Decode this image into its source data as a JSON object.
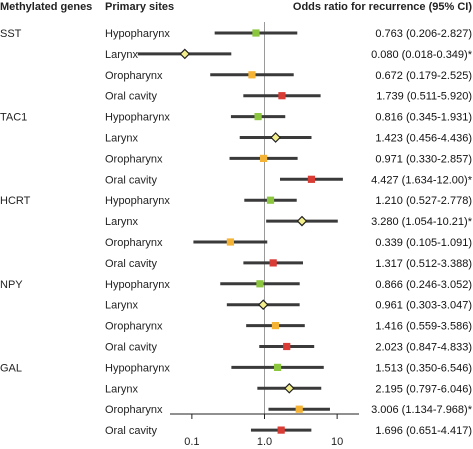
{
  "headers": {
    "genes": "Methylated genes",
    "sites": "Primary sites",
    "or": "Odds ratio for recurrence (95% CI)"
  },
  "colors": {
    "Hypopharynx": "#8cc63f",
    "Larynx": "#f3ef8c",
    "Oropharynx": "#f5b335",
    "Oral cavity": "#d93b35",
    "ci_line": "#3a3a3a"
  },
  "chart_data": {
    "type": "forest",
    "title": "",
    "xlabel": "",
    "ylabel": "",
    "x_scale": "log",
    "xlim": [
      0.05,
      20
    ],
    "xticks": [
      {
        "value": 0.1,
        "label": "0.1"
      },
      {
        "value": 1,
        "label": "1.0"
      },
      {
        "value": 10,
        "label": "10"
      }
    ],
    "reference_line": 1,
    "groups": [
      {
        "gene": "SST",
        "rows": [
          {
            "site": "Hypopharynx",
            "or": 0.763,
            "lo": 0.206,
            "hi": 2.827,
            "label": "0.763 (0.206-2.827)",
            "marker": "square"
          },
          {
            "site": "Larynx",
            "or": 0.08,
            "lo": 0.018,
            "hi": 0.349,
            "label": "0.080 (0.018-0.349)*",
            "marker": "diamond"
          },
          {
            "site": "Oropharynx",
            "or": 0.672,
            "lo": 0.179,
            "hi": 2.525,
            "label": "0.672 (0.179-2.525)",
            "marker": "square"
          },
          {
            "site": "Oral cavity",
            "or": 1.739,
            "lo": 0.511,
            "hi": 5.92,
            "label": "1.739 (0.511-5.920)",
            "marker": "square"
          }
        ]
      },
      {
        "gene": "TAC1",
        "rows": [
          {
            "site": "Hypopharynx",
            "or": 0.816,
            "lo": 0.345,
            "hi": 1.931,
            "label": "0.816 (0.345-1.931)",
            "marker": "square"
          },
          {
            "site": "Larynx",
            "or": 1.423,
            "lo": 0.456,
            "hi": 4.436,
            "label": "1.423 (0.456-4.436)",
            "marker": "diamond"
          },
          {
            "site": "Oropharynx",
            "or": 0.971,
            "lo": 0.33,
            "hi": 2.857,
            "label": "0.971 (0.330-2.857)",
            "marker": "square"
          },
          {
            "site": "Oral cavity",
            "or": 4.427,
            "lo": 1.634,
            "hi": 12.0,
            "label": "4.427 (1.634-12.00)*",
            "marker": "square"
          }
        ]
      },
      {
        "gene": "HCRT",
        "rows": [
          {
            "site": "Hypopharynx",
            "or": 1.21,
            "lo": 0.527,
            "hi": 2.778,
            "label": "1.210 (0.527-2.778)",
            "marker": "square"
          },
          {
            "site": "Larynx",
            "or": 3.28,
            "lo": 1.054,
            "hi": 10.21,
            "label": "3.280 (1.054-10.21)*",
            "marker": "diamond"
          },
          {
            "site": "Oropharynx",
            "or": 0.339,
            "lo": 0.105,
            "hi": 1.091,
            "label": "0.339 (0.105-1.091)",
            "marker": "square"
          },
          {
            "site": "Oral cavity",
            "or": 1.317,
            "lo": 0.512,
            "hi": 3.388,
            "label": "1.317 (0.512-3.388)",
            "marker": "square"
          }
        ]
      },
      {
        "gene": "NPY",
        "rows": [
          {
            "site": "Hypopharynx",
            "or": 0.866,
            "lo": 0.246,
            "hi": 3.052,
            "label": "0.866 (0.246-3.052)",
            "marker": "square"
          },
          {
            "site": "Larynx",
            "or": 0.961,
            "lo": 0.303,
            "hi": 3.047,
            "label": "0.961 (0.303-3.047)",
            "marker": "diamond"
          },
          {
            "site": "Oropharynx",
            "or": 1.416,
            "lo": 0.559,
            "hi": 3.586,
            "label": "1.416 (0.559-3.586)",
            "marker": "square"
          },
          {
            "site": "Oral cavity",
            "or": 2.023,
            "lo": 0.847,
            "hi": 4.833,
            "label": "2.023 (0.847-4.833)",
            "marker": "square"
          }
        ]
      },
      {
        "gene": "GAL",
        "rows": [
          {
            "site": "Hypopharynx",
            "or": 1.513,
            "lo": 0.35,
            "hi": 6.546,
            "label": "1.513 (0.350-6.546)",
            "marker": "square"
          },
          {
            "site": "Larynx",
            "or": 2.195,
            "lo": 0.797,
            "hi": 6.046,
            "label": "2.195 (0.797-6.046)",
            "marker": "diamond"
          },
          {
            "site": "Oropharynx",
            "or": 3.006,
            "lo": 1.134,
            "hi": 7.968,
            "label": "3.006 (1.134-7.968)*",
            "marker": "square"
          },
          {
            "site": "Oral cavity",
            "or": 1.696,
            "lo": 0.651,
            "hi": 4.417,
            "label": "1.696 (0.651-4.417)",
            "marker": "square"
          }
        ]
      }
    ]
  }
}
